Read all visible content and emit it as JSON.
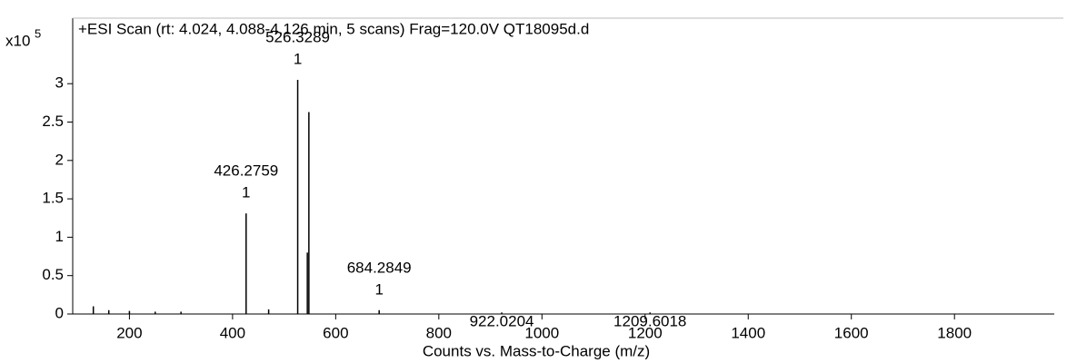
{
  "chart_data": {
    "type": "spectrum",
    "title": "+ESI Scan (rt: 4.024, 4.088-4.126 min, 5 scans) Frag=120.0V QT18095d.d",
    "y_scale_base": "x10",
    "y_scale_exponent": "5",
    "xlabel": "Counts vs. Mass-to-Charge (m/z)",
    "x": [
      130,
      160,
      200,
      250,
      300,
      426.2759,
      470,
      526.3289,
      545,
      548,
      684.2849,
      922.0204,
      1209.6018
    ],
    "values": [
      0.1,
      0.05,
      0.04,
      0.03,
      0.03,
      1.31,
      0.06,
      3.05,
      0.8,
      2.63,
      0.05,
      0.02,
      0.02
    ],
    "x_labels": [
      null,
      null,
      null,
      null,
      null,
      "426.2759",
      null,
      "526.3289",
      null,
      null,
      "684.2849",
      "922.0204",
      "1209.6018"
    ],
    "charge_labels": [
      null,
      null,
      null,
      null,
      null,
      "1",
      null,
      "1",
      null,
      null,
      "1",
      null,
      null
    ],
    "color": "#000000",
    "xlim": [
      90,
      1990
    ],
    "ylim": [
      0,
      3.83
    ],
    "xticks": [
      200,
      400,
      600,
      800,
      1000,
      1200,
      1400,
      1600,
      1800
    ],
    "yticks": [
      0,
      0.5,
      1,
      1.5,
      2,
      2.5,
      3
    ]
  }
}
